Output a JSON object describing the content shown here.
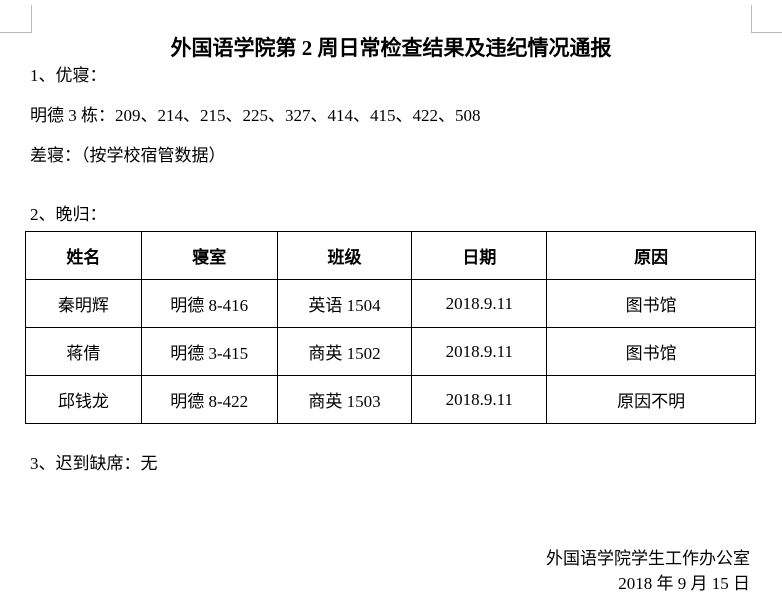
{
  "title": "外国语学院第 2 周日常检查结果及违纪情况通报",
  "section1": {
    "heading": "1、优寝：",
    "good_rooms": "明德 3 栋：209、214、215、225、327、414、415、422、508",
    "bad_rooms": "差寝：（按学校宿管数据）"
  },
  "section2": {
    "heading": "2、晚归：",
    "columns": [
      "姓名",
      "寝室",
      "班级",
      "日期",
      "原因"
    ],
    "rows": [
      [
        "秦明辉",
        "明德 8-416",
        "英语 1504",
        "2018.9.11",
        "图书馆"
      ],
      [
        "蒋倩",
        "明德 3-415",
        "商英 1502",
        "2018.9.11",
        "图书馆"
      ],
      [
        "邱钱龙",
        "明德 8-422",
        "商英 1503",
        "2018.9.11",
        "原因不明"
      ]
    ]
  },
  "section3": {
    "heading": "3、迟到缺席：无"
  },
  "signature": {
    "office": "外国语学院学生工作办公室",
    "date": "2018 年 9 月 15 日"
  }
}
